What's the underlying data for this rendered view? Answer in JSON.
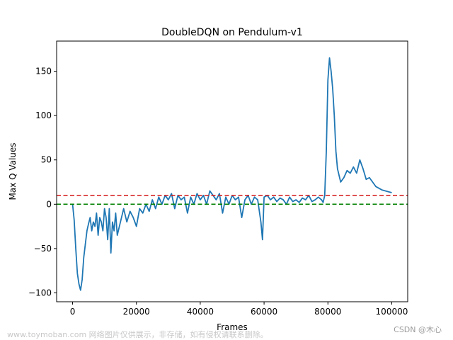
{
  "chart_data": {
    "type": "line",
    "title": "DoubleDQN on Pendulum-v1",
    "xlabel": "Frames",
    "ylabel": "Max Q Values",
    "xlim": [
      -5000,
      105000
    ],
    "ylim": [
      -110,
      184
    ],
    "xticks": [
      0,
      20000,
      40000,
      60000,
      80000,
      100000
    ],
    "xtick_labels": [
      "0",
      "20000",
      "40000",
      "60000",
      "80000",
      "100000"
    ],
    "yticks": [
      -100,
      -50,
      0,
      50,
      100,
      150
    ],
    "ytick_labels": [
      "−100",
      "−50",
      "0",
      "50",
      "100",
      "150"
    ],
    "grid": false,
    "series": [
      {
        "color": "#1f77b4",
        "x": [
          0,
          500,
          1000,
          1500,
          2000,
          2500,
          3000,
          3500,
          4000,
          4500,
          5000,
          5500,
          6000,
          6500,
          7000,
          7500,
          8000,
          8500,
          9000,
          9500,
          10000,
          10500,
          11000,
          11500,
          12000,
          12500,
          13000,
          13500,
          14000,
          15000,
          16000,
          17000,
          18000,
          19000,
          20000,
          21000,
          22000,
          23000,
          24000,
          25000,
          26000,
          27000,
          28000,
          29000,
          30000,
          31000,
          32000,
          33000,
          34000,
          35000,
          36000,
          37000,
          38000,
          39000,
          40000,
          41000,
          42000,
          43000,
          44000,
          45000,
          46000,
          47000,
          48000,
          49000,
          50000,
          51000,
          52000,
          53000,
          54000,
          55000,
          56000,
          57000,
          58000,
          59000,
          59500,
          60000,
          61000,
          62000,
          63000,
          64000,
          65000,
          66000,
          67000,
          68000,
          69000,
          70000,
          71000,
          72000,
          73000,
          74000,
          75000,
          76000,
          77000,
          78000,
          78500,
          79000,
          79500,
          80000,
          80500,
          81000,
          81500,
          82000,
          82500,
          83000,
          84000,
          85000,
          86000,
          87000,
          88000,
          89000,
          90000,
          91000,
          92000,
          93000,
          94000,
          95000,
          96000,
          97000,
          98000,
          99000,
          100000
        ],
        "values": [
          0,
          -18,
          -50,
          -78,
          -90,
          -97,
          -85,
          -60,
          -45,
          -30,
          -22,
          -15,
          -30,
          -20,
          -25,
          -10,
          -35,
          -15,
          -20,
          -30,
          -5,
          -15,
          -40,
          -5,
          -55,
          -20,
          -30,
          -10,
          -35,
          -20,
          -5,
          -20,
          -8,
          -15,
          -25,
          -5,
          -10,
          0,
          -8,
          5,
          -5,
          8,
          0,
          10,
          5,
          12,
          -5,
          10,
          5,
          8,
          -10,
          8,
          0,
          12,
          5,
          10,
          0,
          15,
          10,
          5,
          12,
          -10,
          8,
          0,
          10,
          5,
          8,
          -15,
          5,
          10,
          0,
          8,
          5,
          -20,
          -40,
          8,
          10,
          5,
          8,
          3,
          7,
          5,
          0,
          8,
          3,
          5,
          2,
          7,
          5,
          10,
          3,
          5,
          8,
          5,
          2,
          10,
          60,
          140,
          165,
          150,
          130,
          100,
          60,
          40,
          25,
          30,
          38,
          35,
          42,
          35,
          50,
          40,
          28,
          30,
          25,
          20,
          18,
          16,
          15,
          14,
          13
        ]
      }
    ],
    "hlines": [
      {
        "y": 10,
        "color": "#d62728",
        "style": "dashed"
      },
      {
        "y": 0,
        "color": "#008000",
        "style": "dashed"
      }
    ]
  },
  "watermark": {
    "left_text": "www.toymoban.com 网络图片仅供展示，非存储，如有侵权请联系删除。",
    "right_text": "CSDN @木心"
  }
}
